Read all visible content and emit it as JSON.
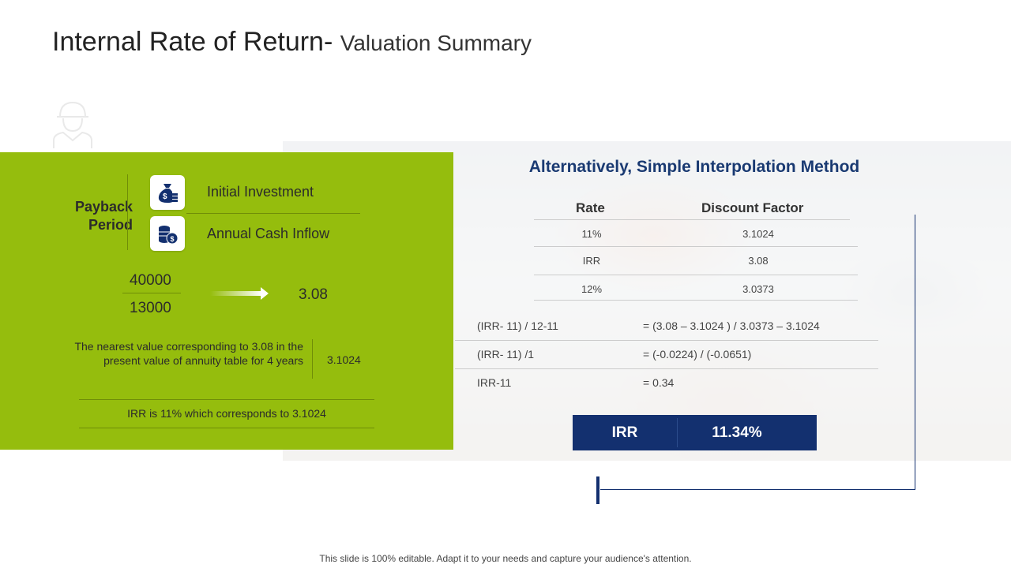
{
  "title": {
    "main": "Internal Rate of Return-",
    "sub": "Valuation Summary"
  },
  "left_panel": {
    "payback_label": "Payback Period",
    "rows": [
      {
        "icon": "money-bag-icon",
        "label": "Initial Investment"
      },
      {
        "icon": "coin-stack-icon",
        "label": "Annual Cash Inflow"
      }
    ],
    "numerator": "40000",
    "denominator": "13000",
    "result": "3.08",
    "nearest_text": "The nearest value corresponding to 3.08 in the present value of annuity table for 4 years",
    "nearest_value": "3.1024",
    "irr_note": "IRR is 11% which corresponds to 3.1024"
  },
  "right_panel": {
    "heading": "Alternatively, Simple Interpolation Method",
    "table": {
      "headers": [
        "Rate",
        "Discount Factor"
      ],
      "rows": [
        [
          "11%",
          "3.1024"
        ],
        [
          "IRR",
          "3.08"
        ],
        [
          "12%",
          "3.0373"
        ]
      ]
    },
    "calculations": [
      {
        "left": "(IRR- 11) / 12-11",
        "right": "= (3.08 – 3.1024 ) / 3.0373 – 3.1024"
      },
      {
        "left": "(IRR- 11) /1",
        "right": "= (-0.0224) / (-0.0651)"
      },
      {
        "left": "IRR-11",
        "right": "= 0.34"
      }
    ],
    "irr_result": {
      "label": "IRR",
      "value": "11.34%"
    }
  },
  "footer": "This slide is 100% editable. Adapt it to your needs and capture your audience's attention.",
  "colors": {
    "green": "#95bd0d",
    "navy": "#13306f",
    "heading": "#1a3a72"
  }
}
